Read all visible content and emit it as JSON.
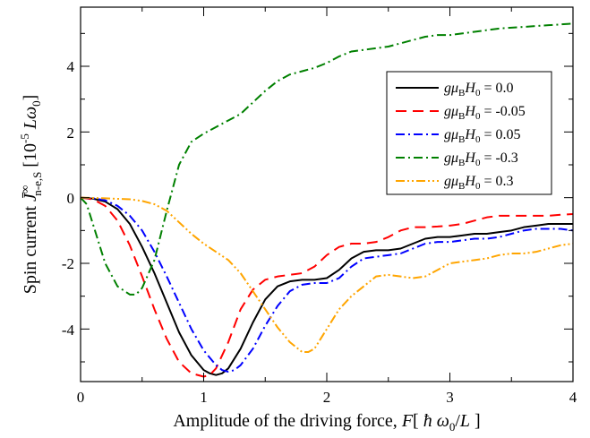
{
  "chart_data": {
    "type": "line",
    "xlabel": {
      "prefix": "Amplitude of the driving force, ",
      "var": "F",
      "bracket_open": "[ ",
      "hbar": "ħ",
      "omega": " ω",
      "omega_sub": "0",
      "per": "/",
      "L": "L",
      "bracket_close": " ]"
    },
    "ylabel": {
      "prefix": "Spin current  ",
      "J": "J̄",
      "J_sup": "∞",
      "J_sub": "n-e,S",
      "unit_open": "  [10",
      "unit_exp": "-5",
      "unit_L": " L",
      "unit_omega": "ω",
      "unit_omega_sub": "0",
      "unit_close": "]"
    },
    "xlim": [
      0,
      4
    ],
    "ylim": [
      -5.6,
      5.8
    ],
    "xticks": [
      "0",
      "1",
      "2",
      "3",
      "4"
    ],
    "yticks": [
      "-4",
      "-2",
      "0",
      "2",
      "4"
    ],
    "xtick_values": [
      0,
      1,
      2,
      3,
      4
    ],
    "ytick_values": [
      -4,
      -2,
      0,
      2,
      4
    ],
    "grid": false,
    "legend_position": "top-right",
    "series": [
      {
        "name": "gμBH0 = 0.0",
        "label": {
          "g": "g",
          "mu": "μ",
          "mu_sub": "B",
          "H": "H",
          "H_sub": "0",
          "value": " = 0.0"
        },
        "color": "#000000",
        "dash": "",
        "x": [
          0,
          0.1,
          0.2,
          0.3,
          0.4,
          0.5,
          0.6,
          0.7,
          0.8,
          0.9,
          1.0,
          1.05,
          1.1,
          1.15,
          1.2,
          1.3,
          1.4,
          1.5,
          1.6,
          1.7,
          1.8,
          1.9,
          2.0,
          2.1,
          2.2,
          2.3,
          2.4,
          2.5,
          2.6,
          2.7,
          2.8,
          2.9,
          3.0,
          3.1,
          3.2,
          3.3,
          3.4,
          3.5,
          3.6,
          3.7,
          3.8,
          3.9,
          4.0
        ],
        "y": [
          0,
          -0.03,
          -0.12,
          -0.35,
          -0.8,
          -1.5,
          -2.3,
          -3.2,
          -4.1,
          -4.8,
          -5.25,
          -5.35,
          -5.4,
          -5.35,
          -5.2,
          -4.6,
          -3.8,
          -3.1,
          -2.7,
          -2.55,
          -2.5,
          -2.5,
          -2.45,
          -2.2,
          -1.85,
          -1.65,
          -1.6,
          -1.6,
          -1.55,
          -1.4,
          -1.25,
          -1.2,
          -1.2,
          -1.15,
          -1.1,
          -1.1,
          -1.05,
          -1.0,
          -0.9,
          -0.85,
          -0.8,
          -0.8,
          -0.8
        ]
      },
      {
        "name": "gμBH0 = -0.05",
        "label": {
          "g": "g",
          "mu": "μ",
          "mu_sub": "B",
          "H": "H",
          "H_sub": "0",
          "value": " = -0.05"
        },
        "color": "#ff0000",
        "dash": "12,7",
        "x": [
          0,
          0.1,
          0.2,
          0.3,
          0.4,
          0.5,
          0.6,
          0.7,
          0.8,
          0.9,
          1.0,
          1.05,
          1.1,
          1.2,
          1.3,
          1.4,
          1.5,
          1.6,
          1.7,
          1.8,
          1.9,
          2.0,
          2.1,
          2.2,
          2.3,
          2.4,
          2.5,
          2.6,
          2.7,
          2.8,
          2.9,
          3.0,
          3.1,
          3.2,
          3.3,
          3.4,
          3.5,
          3.6,
          3.7,
          3.8,
          3.9,
          4.0
        ],
        "y": [
          0,
          -0.05,
          -0.25,
          -0.7,
          -1.45,
          -2.4,
          -3.4,
          -4.3,
          -5.0,
          -5.35,
          -5.45,
          -5.4,
          -5.2,
          -4.4,
          -3.4,
          -2.8,
          -2.5,
          -2.4,
          -2.35,
          -2.3,
          -2.1,
          -1.75,
          -1.5,
          -1.4,
          -1.4,
          -1.35,
          -1.2,
          -1.0,
          -0.9,
          -0.9,
          -0.88,
          -0.85,
          -0.8,
          -0.7,
          -0.6,
          -0.55,
          -0.55,
          -0.55,
          -0.55,
          -0.55,
          -0.52,
          -0.5
        ]
      },
      {
        "name": "gμBH0 = 0.05",
        "label": {
          "g": "g",
          "mu": "μ",
          "mu_sub": "B",
          "H": "H",
          "H_sub": "0",
          "value": " = 0.05"
        },
        "color": "#0000ff",
        "dash": "10,4,2,4",
        "x": [
          0,
          0.1,
          0.2,
          0.3,
          0.4,
          0.5,
          0.6,
          0.7,
          0.8,
          0.9,
          1.0,
          1.1,
          1.15,
          1.2,
          1.25,
          1.3,
          1.4,
          1.5,
          1.6,
          1.7,
          1.8,
          1.9,
          2.0,
          2.1,
          2.2,
          2.3,
          2.4,
          2.5,
          2.6,
          2.7,
          2.8,
          2.9,
          3.0,
          3.1,
          3.2,
          3.3,
          3.4,
          3.5,
          3.6,
          3.7,
          3.8,
          3.9,
          4.0
        ],
        "y": [
          0,
          -0.02,
          -0.08,
          -0.25,
          -0.55,
          -1.0,
          -1.65,
          -2.4,
          -3.2,
          -4.0,
          -4.65,
          -5.1,
          -5.25,
          -5.3,
          -5.25,
          -5.1,
          -4.6,
          -3.9,
          -3.3,
          -2.85,
          -2.65,
          -2.6,
          -2.6,
          -2.45,
          -2.1,
          -1.85,
          -1.8,
          -1.75,
          -1.7,
          -1.55,
          -1.4,
          -1.35,
          -1.35,
          -1.3,
          -1.25,
          -1.25,
          -1.2,
          -1.1,
          -1.0,
          -0.95,
          -0.95,
          -0.95,
          -1.0
        ]
      },
      {
        "name": "gμBH0 = -0.3",
        "label": {
          "g": "g",
          "mu": "μ",
          "mu_sub": "B",
          "H": "H",
          "H_sub": "0",
          "value": " = -0.3"
        },
        "color": "#008000",
        "dash": "10,4,2,4",
        "x": [
          0,
          0.05,
          0.1,
          0.2,
          0.3,
          0.4,
          0.45,
          0.5,
          0.6,
          0.7,
          0.8,
          0.9,
          1.0,
          1.1,
          1.2,
          1.3,
          1.4,
          1.5,
          1.6,
          1.7,
          1.8,
          1.9,
          2.0,
          2.1,
          2.2,
          2.3,
          2.4,
          2.5,
          2.6,
          2.7,
          2.8,
          2.9,
          3.0,
          3.2,
          3.4,
          3.6,
          3.8,
          4.0
        ],
        "y": [
          0,
          -0.2,
          -0.8,
          -2.0,
          -2.7,
          -2.95,
          -2.95,
          -2.75,
          -1.9,
          -0.4,
          1.0,
          1.7,
          1.95,
          2.15,
          2.35,
          2.55,
          2.9,
          3.25,
          3.55,
          3.75,
          3.85,
          3.95,
          4.1,
          4.3,
          4.45,
          4.5,
          4.55,
          4.6,
          4.7,
          4.8,
          4.9,
          4.95,
          4.95,
          5.05,
          5.15,
          5.2,
          5.25,
          5.3
        ]
      },
      {
        "name": "gμBH0 = 0.3",
        "label": {
          "g": "g",
          "mu": "μ",
          "mu_sub": "B",
          "H": "H",
          "H_sub": "0",
          "value": " = 0.3"
        },
        "color": "#ffa500",
        "dash": "10,3,2,3,2,3",
        "x": [
          0,
          0.2,
          0.4,
          0.5,
          0.6,
          0.7,
          0.8,
          0.9,
          1.0,
          1.1,
          1.2,
          1.3,
          1.4,
          1.5,
          1.6,
          1.7,
          1.8,
          1.85,
          1.9,
          2.0,
          2.1,
          2.2,
          2.3,
          2.4,
          2.5,
          2.6,
          2.7,
          2.8,
          2.9,
          3.0,
          3.1,
          3.2,
          3.3,
          3.4,
          3.5,
          3.6,
          3.7,
          3.8,
          3.9,
          4.0
        ],
        "y": [
          0,
          -0.02,
          -0.05,
          -0.1,
          -0.2,
          -0.4,
          -0.75,
          -1.1,
          -1.4,
          -1.65,
          -1.9,
          -2.3,
          -2.85,
          -3.4,
          -3.95,
          -4.4,
          -4.7,
          -4.7,
          -4.6,
          -4.0,
          -3.4,
          -3.0,
          -2.7,
          -2.4,
          -2.35,
          -2.4,
          -2.45,
          -2.4,
          -2.2,
          -2.0,
          -1.95,
          -1.9,
          -1.85,
          -1.75,
          -1.7,
          -1.7,
          -1.65,
          -1.55,
          -1.45,
          -1.4
        ]
      }
    ]
  }
}
